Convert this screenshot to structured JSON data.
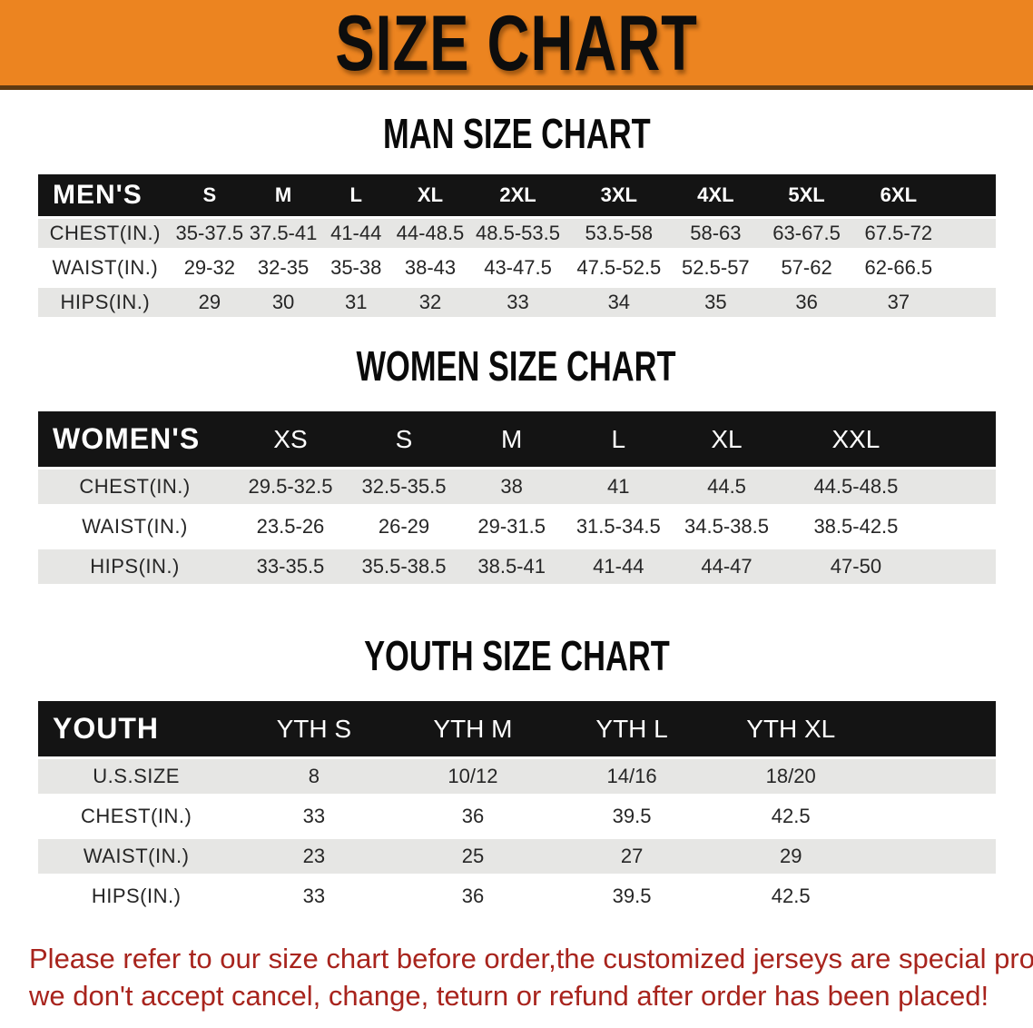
{
  "banner": {
    "title": "SIZE CHART"
  },
  "colors": {
    "banner_orange": "#ec8420",
    "banner_border": "#5d3a12",
    "header_black": "#141414",
    "row_gray": "#e6e6e4",
    "row_white": "#ffffff",
    "note_red": "#a8241d"
  },
  "sections": {
    "men": {
      "heading": "MAN SIZE CHART",
      "table": {
        "header": [
          "MEN'S",
          "S",
          "M",
          "L",
          "XL",
          "2XL",
          "3XL",
          "4XL",
          "5XL",
          "6XL"
        ],
        "rows": [
          [
            "CHEST(IN.)",
            "35-37.5",
            "37.5-41",
            "41-44",
            "44-48.5",
            "48.5-53.5",
            "53.5-58",
            "58-63",
            "63-67.5",
            "67.5-72"
          ],
          [
            "WAIST(IN.)",
            "29-32",
            "32-35",
            "35-38",
            "38-43",
            "43-47.5",
            "47.5-52.5",
            "52.5-57",
            "57-62",
            "62-66.5"
          ],
          [
            "HIPS(IN.)",
            "29",
            "30",
            "31",
            "32",
            "33",
            "34",
            "35",
            "36",
            "37"
          ]
        ],
        "col_widths": [
          "14%",
          "7.8%",
          "7.6%",
          "7.6%",
          "7.9%",
          "10.4%",
          "10.7%",
          "9.5%",
          "9.5%",
          "9.7%",
          "5.3%"
        ]
      }
    },
    "women": {
      "heading": "WOMEN SIZE CHART",
      "table": {
        "header": [
          "WOMEN'S",
          "XS",
          "S",
          "M",
          "L",
          "XL",
          "XXL"
        ],
        "rows": [
          [
            "CHEST(IN.)",
            "29.5-32.5",
            "32.5-35.5",
            "38",
            "41",
            "44.5",
            "44.5-48.5"
          ],
          [
            "WAIST(IN.)",
            "23.5-26",
            "26-29",
            "29-31.5",
            "31.5-34.5",
            "34.5-38.5",
            "38.5-42.5"
          ],
          [
            "HIPS(IN.)",
            "33-35.5",
            "35.5-38.5",
            "38.5-41",
            "41-44",
            "44-47",
            "47-50"
          ]
        ],
        "col_widths": [
          "20.2%",
          "12.3%",
          "11.4%",
          "11.1%",
          "11.2%",
          "11.4%",
          "15.6%",
          "6.8%"
        ]
      }
    },
    "youth": {
      "heading": "YOUTH SIZE CHART",
      "table": {
        "header": [
          "YOUTH",
          "YTH S",
          "YTH M",
          "YTH L",
          "YTH XL"
        ],
        "rows": [
          [
            "U.S.SIZE",
            "8",
            "10/12",
            "14/16",
            "18/20"
          ],
          [
            "CHEST(IN.)",
            "33",
            "36",
            "39.5",
            "42.5"
          ],
          [
            "WAIST(IN.)",
            "23",
            "25",
            "27",
            "29"
          ],
          [
            "HIPS(IN.)",
            "33",
            "36",
            "39.5",
            "42.5"
          ]
        ],
        "col_widths": [
          "20.5%",
          "16.6%",
          "16.6%",
          "16.6%",
          "16.6%",
          "13.1%"
        ]
      }
    }
  },
  "footer": {
    "lines": [
      "Please refer to our size chart before order,the customized jerseys are special products,",
      "we don't accept cancel, change, teturn or refund after order has been placed!"
    ]
  }
}
